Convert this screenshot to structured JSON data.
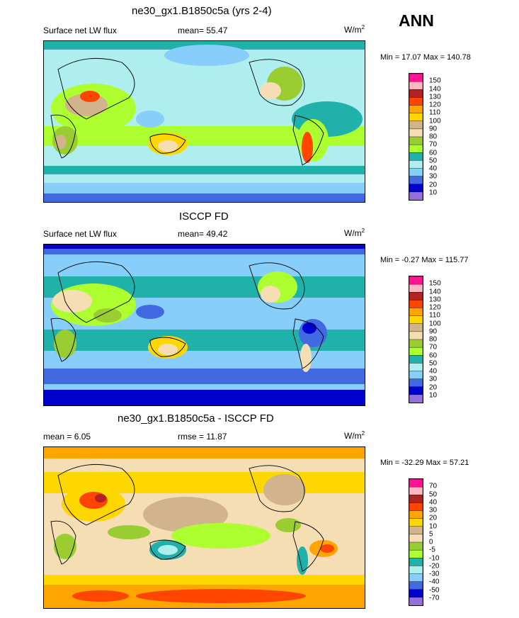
{
  "season": "ANN",
  "panels": [
    {
      "title": "ne30_gx1.B1850c5a (yrs 2-4)",
      "left_label": "Surface net LW flux",
      "center_label": "mean=  55.47",
      "units": "W/m",
      "units_sup": "2",
      "minmax": "Min =  17.07 Max = 140.78",
      "colorbar_labels": [
        "150",
        "140",
        "130",
        "120",
        "110",
        "100",
        "90",
        "80",
        "70",
        "60",
        "50",
        "40",
        "30",
        "20",
        "10"
      ],
      "colorbar_colors": [
        "#ff1493",
        "#ffb6c1",
        "#b22222",
        "#ff4500",
        "#ffa500",
        "#ffd700",
        "#d2b48c",
        "#f5deb3",
        "#9acd32",
        "#adff2f",
        "#20b2aa",
        "#afeeee",
        "#87cefa",
        "#4169e1",
        "#0000cd",
        "#9370db"
      ]
    },
    {
      "title": "ISCCP FD",
      "left_label": "Surface net LW flux",
      "center_label": "mean=  49.42",
      "units": "W/m",
      "units_sup": "2",
      "minmax": "Min =  -0.27 Max = 115.77",
      "colorbar_labels": [
        "150",
        "140",
        "130",
        "120",
        "110",
        "100",
        "90",
        "80",
        "70",
        "60",
        "50",
        "40",
        "30",
        "20",
        "10"
      ],
      "colorbar_colors": [
        "#ff1493",
        "#ffb6c1",
        "#b22222",
        "#ff4500",
        "#ffa500",
        "#ffd700",
        "#d2b48c",
        "#f5deb3",
        "#9acd32",
        "#adff2f",
        "#20b2aa",
        "#afeeee",
        "#87cefa",
        "#4169e1",
        "#0000cd",
        "#9370db"
      ]
    },
    {
      "title": "ne30_gx1.B1850c5a - ISCCP FD",
      "left_label": "mean =   6.05",
      "center_label": "rmse =  11.87",
      "units": "W/m",
      "units_sup": "2",
      "minmax": "Min = -32.29 Max =  57.21",
      "colorbar_labels": [
        "70",
        "50",
        "40",
        "30",
        "20",
        "10",
        "5",
        "0",
        "-5",
        "-10",
        "-20",
        "-30",
        "-40",
        "-50",
        "-70"
      ],
      "colorbar_colors": [
        "#ff1493",
        "#ffb6c1",
        "#b22222",
        "#ff4500",
        "#ffa500",
        "#ffd700",
        "#d2b48c",
        "#f5deb3",
        "#9acd32",
        "#adff2f",
        "#20b2aa",
        "#afeeee",
        "#87cefa",
        "#4169e1",
        "#0000cd",
        "#9370db"
      ]
    }
  ],
  "chart_data": [
    {
      "type": "heatmap",
      "title": "ne30_gx1.B1850c5a (yrs 2-4)",
      "variable": "Surface net LW flux",
      "units": "W/m2",
      "mean": 55.47,
      "min": 17.07,
      "max": 140.78,
      "levels": [
        10,
        20,
        30,
        40,
        50,
        60,
        70,
        80,
        90,
        100,
        110,
        120,
        130,
        140,
        150
      ]
    },
    {
      "type": "heatmap",
      "title": "ISCCP FD",
      "variable": "Surface net LW flux",
      "units": "W/m2",
      "mean": 49.42,
      "min": -0.27,
      "max": 115.77,
      "levels": [
        10,
        20,
        30,
        40,
        50,
        60,
        70,
        80,
        90,
        100,
        110,
        120,
        130,
        140,
        150
      ]
    },
    {
      "type": "heatmap",
      "title": "ne30_gx1.B1850c5a - ISCCP FD",
      "units": "W/m2",
      "mean": 6.05,
      "rmse": 11.87,
      "min": -32.29,
      "max": 57.21,
      "levels": [
        -70,
        -50,
        -40,
        -30,
        -20,
        -10,
        -5,
        0,
        5,
        10,
        20,
        30,
        40,
        50,
        70
      ]
    }
  ]
}
